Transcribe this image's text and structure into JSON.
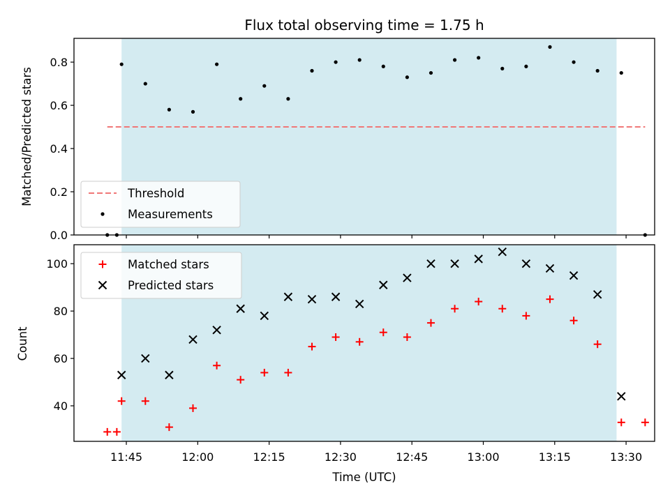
{
  "colors": {
    "shade": "#d4ebf1",
    "threshold": "#f07777",
    "measurement": "#000000",
    "matched": "#ff0000",
    "predicted": "#000000"
  },
  "chart_data": [
    {
      "type": "scatter",
      "title": "Flux total observing time = 1.75 h",
      "xlabel": "",
      "ylabel": "Matched/Predicted stars",
      "xlim": [
        "11:34",
        "13:36"
      ],
      "ylim": [
        0,
        0.91
      ],
      "yticks": [
        "0.0",
        "0.2",
        "0.4",
        "0.6",
        "0.8"
      ],
      "shaded_span": [
        "11:44",
        "13:28"
      ],
      "legend_position": "lower-left",
      "series": [
        {
          "name": "Threshold",
          "style": "dashed-line",
          "x": [
            "11:41",
            "13:34"
          ],
          "y": [
            0.5,
            0.5
          ]
        },
        {
          "name": "Measurements",
          "style": "dot",
          "x": [
            "11:41",
            "11:43",
            "11:44",
            "11:49",
            "11:54",
            "11:59",
            "12:04",
            "12:09",
            "12:14",
            "12:19",
            "12:24",
            "12:29",
            "12:34",
            "12:39",
            "12:44",
            "12:49",
            "12:54",
            "12:59",
            "13:04",
            "13:09",
            "13:14",
            "13:19",
            "13:24",
            "13:29",
            "13:34"
          ],
          "y": [
            0.0,
            0.0,
            0.79,
            0.7,
            0.58,
            0.57,
            0.79,
            0.63,
            0.69,
            0.63,
            0.76,
            0.8,
            0.81,
            0.78,
            0.73,
            0.75,
            0.81,
            0.82,
            0.77,
            0.78,
            0.87,
            0.8,
            0.76,
            0.75,
            0.0
          ]
        }
      ]
    },
    {
      "type": "scatter",
      "title": "",
      "xlabel": "Time (UTC)",
      "ylabel": "Count",
      "xlim": [
        "11:34",
        "13:36"
      ],
      "ylim": [
        25,
        108
      ],
      "yticks": [
        "40",
        "60",
        "80",
        "100"
      ],
      "xticks": [
        "11:45",
        "12:00",
        "12:15",
        "12:30",
        "12:45",
        "13:00",
        "13:15",
        "13:30"
      ],
      "shaded_span": [
        "11:44",
        "13:28"
      ],
      "legend_position": "upper-left",
      "series": [
        {
          "name": "Matched stars",
          "marker": "plus",
          "x": [
            "11:41",
            "11:43",
            "11:44",
            "11:49",
            "11:54",
            "11:59",
            "12:04",
            "12:09",
            "12:14",
            "12:19",
            "12:24",
            "12:29",
            "12:34",
            "12:39",
            "12:44",
            "12:49",
            "12:54",
            "12:59",
            "13:04",
            "13:09",
            "13:14",
            "13:19",
            "13:24",
            "13:29",
            "13:34"
          ],
          "y": [
            29,
            29,
            42,
            42,
            31,
            39,
            57,
            51,
            54,
            54,
            65,
            69,
            67,
            71,
            69,
            75,
            81,
            84,
            81,
            78,
            85,
            76,
            66,
            33,
            33
          ]
        },
        {
          "name": "Predicted stars",
          "marker": "x",
          "x": [
            "11:44",
            "11:49",
            "11:54",
            "11:59",
            "12:04",
            "12:09",
            "12:14",
            "12:19",
            "12:24",
            "12:29",
            "12:34",
            "12:39",
            "12:44",
            "12:49",
            "12:54",
            "12:59",
            "13:04",
            "13:09",
            "13:14",
            "13:19",
            "13:24",
            "13:29"
          ],
          "y": [
            53,
            60,
            53,
            68,
            72,
            81,
            78,
            86,
            85,
            86,
            83,
            91,
            94,
            100,
            100,
            102,
            105,
            100,
            98,
            95,
            87,
            44
          ]
        }
      ]
    }
  ]
}
